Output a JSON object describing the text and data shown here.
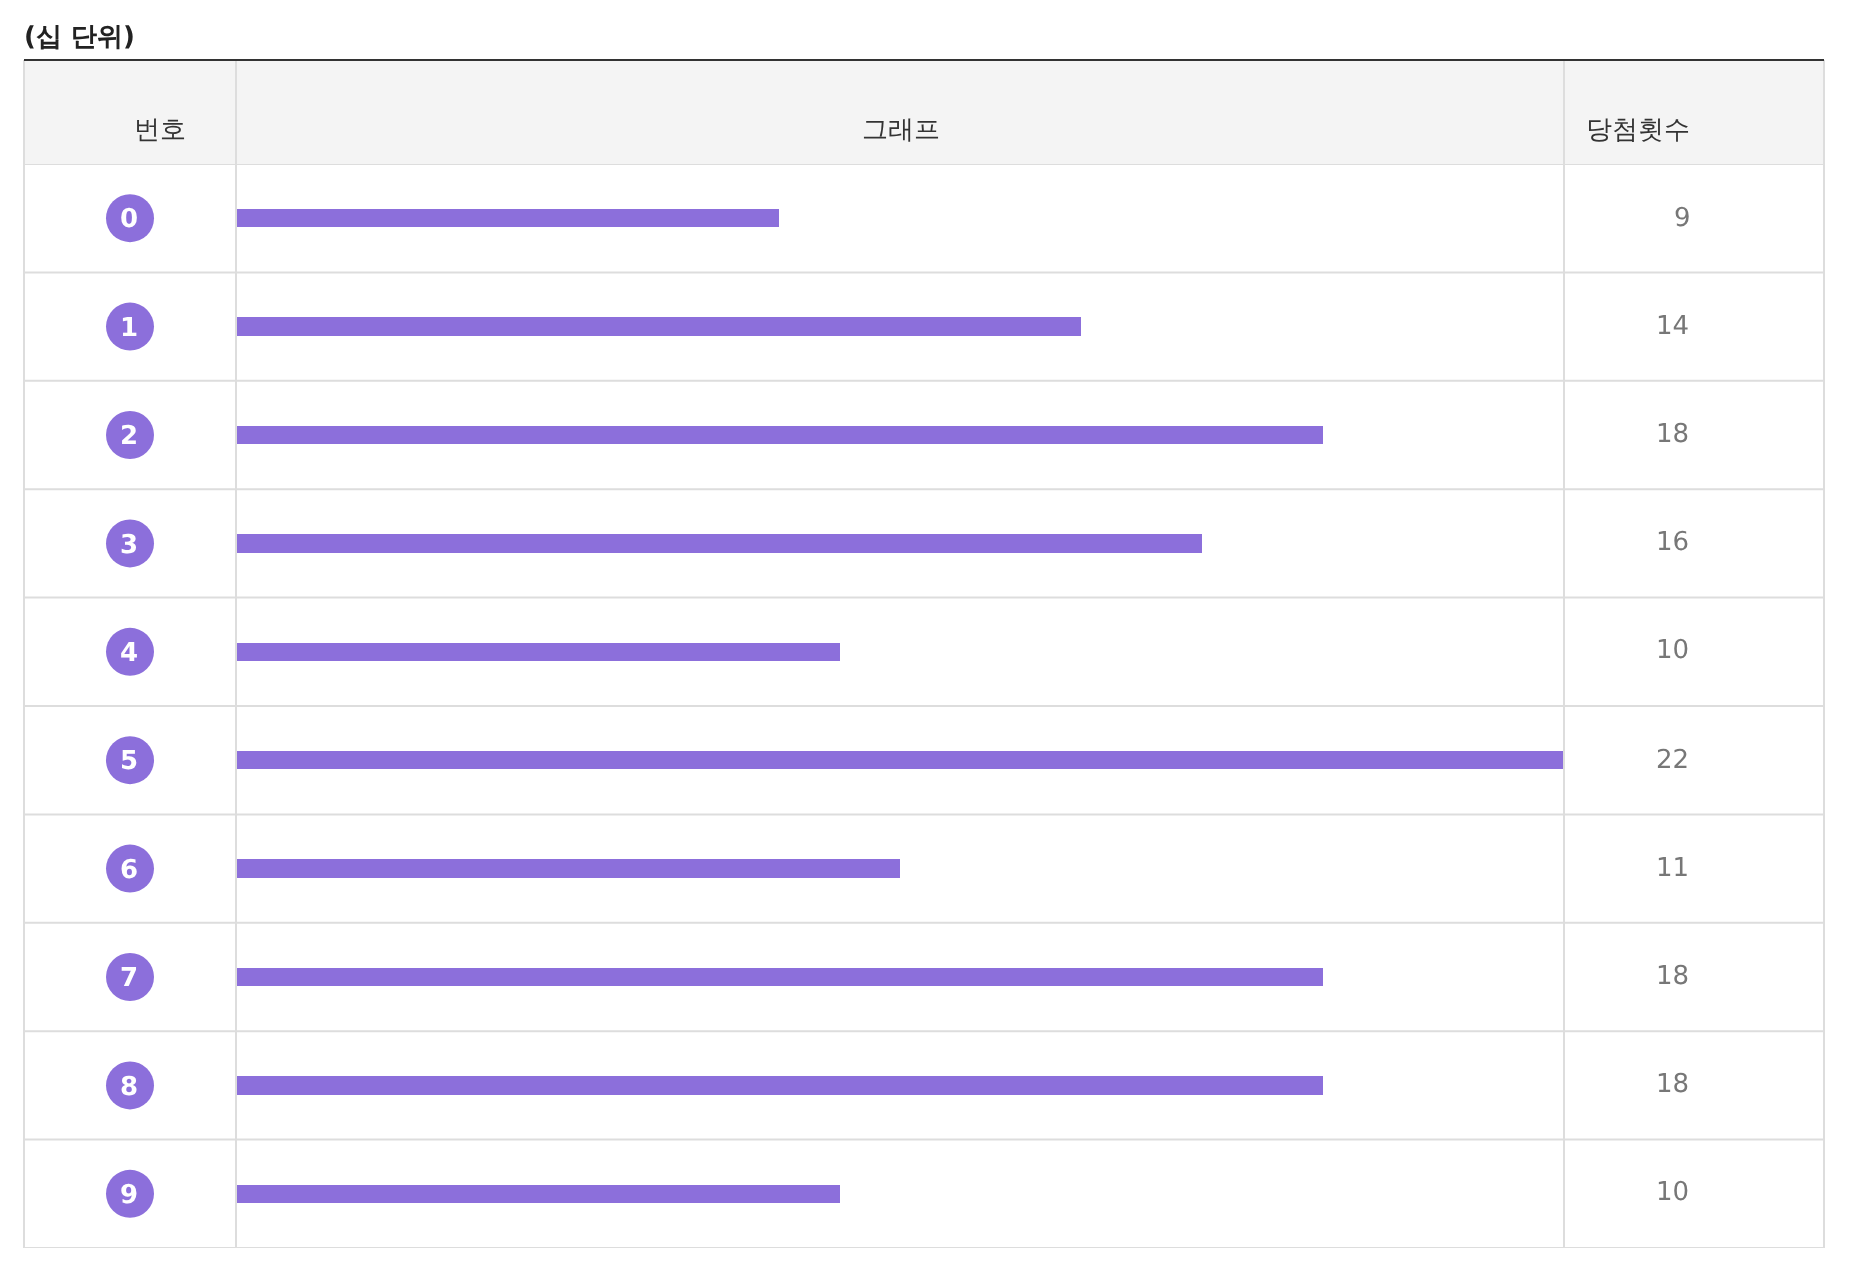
{
  "chart_data": {
    "type": "bar",
    "orientation": "horizontal",
    "title": "(십 단위)",
    "ylabel": "번호",
    "xlabel": "그래프",
    "annotations": [
      "당첨횟수"
    ],
    "categories": [
      "0",
      "1",
      "2",
      "3",
      "4",
      "5",
      "6",
      "7",
      "8",
      "9"
    ],
    "values": [
      9,
      14,
      18,
      16,
      10,
      22,
      11,
      18,
      18,
      10
    ],
    "color": "#8c6fdb",
    "xlim": [
      0,
      22
    ],
    "data_labels": true,
    "tick_labels": "y",
    "grid": false,
    "legend": false
  }
}
